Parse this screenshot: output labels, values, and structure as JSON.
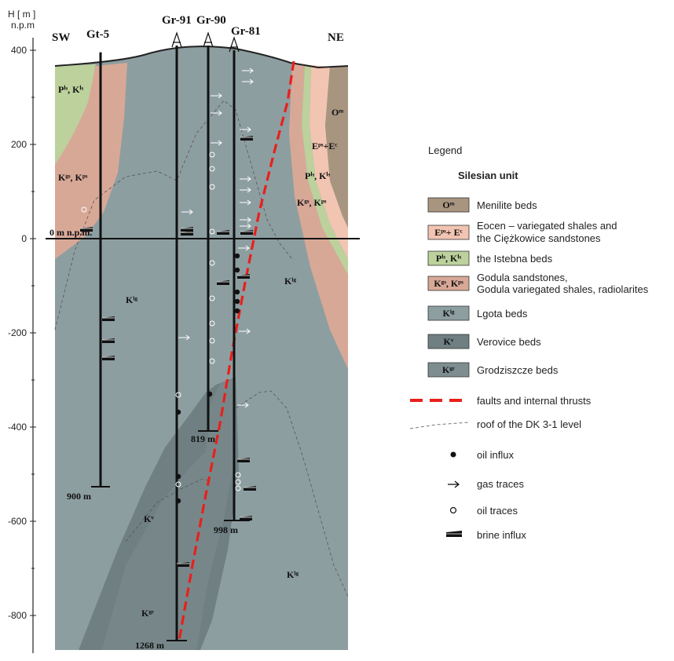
{
  "axis": {
    "title_line1": "H [ m ]",
    "title_line2": "n.p.m",
    "ticks": [
      "400",
      "200",
      "0",
      "-200",
      "-400",
      "-600",
      "-800"
    ]
  },
  "directions": {
    "left": "SW",
    "right": "NE"
  },
  "wells": [
    {
      "name": "Gt-5",
      "depth_label": "900 m"
    },
    {
      "name": "Gr-91",
      "depth_label": "1268 m"
    },
    {
      "name": "Gr-90",
      "depth_label": "819 m"
    },
    {
      "name": "Gr-81",
      "depth_label": "998 m"
    }
  ],
  "sea_level_label": "0 m n.p.m.",
  "unit_labels": {
    "o_m": "Oᵐ",
    "k_lg": "Kˡᵍ",
    "k_v": "Kᵛ",
    "k_gr": "Kᵍʳ",
    "p_is_k_is": "Pⁱˢ, Kⁱˢ",
    "k_gs_k_ps": "Kᵍˢ, Kᵖˢ",
    "e_ps_e_c": "Eᵖˢ+Eᶜ"
  },
  "legend": {
    "title": "Legend",
    "subtitle": "Silesian unit",
    "units": [
      {
        "code": "Oᵐ",
        "text": "Menilite beds",
        "color": "#a89580"
      },
      {
        "code": "Eᵖˢ+ Eᶜ",
        "text": "Eocen – variegated shales and",
        "text2": "the Ciężkowice sandstones",
        "color": "#f2c4b2"
      },
      {
        "code": "Pⁱˢ, Kⁱˢ",
        "text": "the Istebna beds",
        "color": "#bcd19c"
      },
      {
        "code": "Kᵍˢ, Kᵖˢ",
        "text": "Godula sandstones,",
        "text2": "Godula variegated shales, radiolarites",
        "color": "#d8a897"
      },
      {
        "code": "Kˡᵍ",
        "text": "Lgota beds",
        "color": "#8d9ea1"
      },
      {
        "code": "Kᵛ",
        "text": "Verovice beds",
        "color": "#6f7f82"
      },
      {
        "code": "Kᵍʳ",
        "text": "Grodziszcze beds",
        "color": "#7e8e90"
      }
    ],
    "symbols": [
      {
        "kind": "fault",
        "text": "faults and internal thrusts"
      },
      {
        "kind": "roof",
        "text": "roof of the DK 3-1 level"
      },
      {
        "kind": "oil-influx",
        "text": "oil influx"
      },
      {
        "kind": "gas-traces",
        "text": "gas traces"
      },
      {
        "kind": "oil-traces",
        "text": "oil traces"
      },
      {
        "kind": "brine-influx",
        "text": "brine influx"
      }
    ]
  },
  "colors": {
    "lgota": "#8d9ea1",
    "verovice": "#6f7f82",
    "menilite": "#a89580",
    "eocene": "#f2c4b2",
    "istebna": "#bcd19c",
    "godula": "#d8a897",
    "fault": "#e8201c"
  }
}
